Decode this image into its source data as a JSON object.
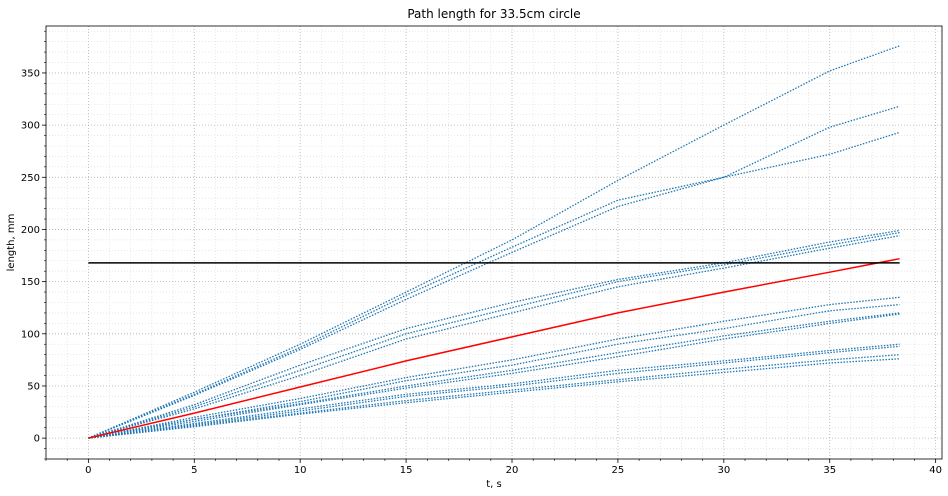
{
  "chart_data": {
    "type": "line",
    "title": "Path length for 33.5cm circle",
    "xlabel": "t, s",
    "ylabel": "length, mm",
    "xlim": [
      -2,
      40.3
    ],
    "ylim": [
      -20,
      395
    ],
    "xticks": [
      0,
      5,
      10,
      15,
      20,
      25,
      30,
      35,
      40
    ],
    "yticks": [
      0,
      50,
      100,
      150,
      200,
      250,
      300,
      350
    ],
    "grid": true,
    "minor_grid": true,
    "colors": {
      "paths": "#1f77b4",
      "mean": "#ff0000",
      "threshold": "#000000",
      "grid": "#b0b0b0"
    },
    "series": [
      {
        "style": "dotted",
        "x": [
          0,
          5,
          10,
          15,
          20,
          25,
          30,
          35,
          38.3
        ],
        "y": [
          0,
          44,
          90,
          140,
          190,
          247,
          300,
          352,
          376
        ]
      },
      {
        "style": "dotted",
        "x": [
          0,
          5,
          10,
          15,
          20,
          25,
          30,
          35,
          38.3
        ],
        "y": [
          0,
          42,
          87,
          137,
          183,
          228,
          250,
          298,
          318
        ]
      },
      {
        "style": "dotted",
        "x": [
          0,
          5,
          10,
          15,
          20,
          25,
          30,
          35,
          38.3
        ],
        "y": [
          0,
          41,
          85,
          133,
          178,
          222,
          250,
          272,
          293
        ]
      },
      {
        "style": "dotted",
        "x": [
          0,
          5,
          10,
          15,
          20,
          25,
          30,
          35,
          38.3
        ],
        "y": [
          0,
          32,
          70,
          105,
          130,
          152,
          168,
          188,
          199
        ]
      },
      {
        "style": "dotted",
        "x": [
          0,
          5,
          10,
          15,
          20,
          25,
          30,
          35,
          38.3
        ],
        "y": [
          0,
          30,
          65,
          100,
          125,
          150,
          166,
          185,
          197
        ]
      },
      {
        "style": "dotted",
        "x": [
          0,
          5,
          10,
          15,
          20,
          25,
          30,
          35,
          38.3
        ],
        "y": [
          0,
          28,
          60,
          95,
          120,
          145,
          163,
          182,
          194
        ]
      },
      {
        "style": "dotted",
        "x": [
          0,
          5,
          10,
          15,
          20,
          25,
          30,
          35,
          38.3
        ],
        "y": [
          0,
          20,
          38,
          58,
          75,
          95,
          112,
          128,
          135
        ]
      },
      {
        "style": "dotted",
        "x": [
          0,
          5,
          10,
          15,
          20,
          25,
          30,
          35,
          38.3
        ],
        "y": [
          0,
          18,
          35,
          55,
          70,
          90,
          105,
          122,
          128
        ]
      },
      {
        "style": "dotted",
        "x": [
          0,
          5,
          10,
          15,
          20,
          25,
          30,
          35,
          38.3
        ],
        "y": [
          0,
          18,
          33,
          50,
          65,
          82,
          98,
          112,
          120
        ]
      },
      {
        "style": "dotted",
        "x": [
          0,
          5,
          10,
          15,
          20,
          25,
          30,
          35,
          38.3
        ],
        "y": [
          0,
          16,
          32,
          48,
          62,
          78,
          95,
          110,
          119
        ]
      },
      {
        "style": "dotted",
        "x": [
          0,
          5,
          10,
          15,
          20,
          25,
          30,
          35,
          38.3
        ],
        "y": [
          0,
          14,
          28,
          42,
          52,
          65,
          74,
          84,
          90
        ]
      },
      {
        "style": "dotted",
        "x": [
          0,
          5,
          10,
          15,
          20,
          25,
          30,
          35,
          38.3
        ],
        "y": [
          0,
          13,
          26,
          40,
          50,
          62,
          72,
          82,
          88
        ]
      },
      {
        "style": "dotted",
        "x": [
          0,
          5,
          10,
          15,
          20,
          25,
          30,
          35,
          38.3
        ],
        "y": [
          0,
          12,
          24,
          36,
          46,
          56,
          66,
          75,
          80
        ]
      },
      {
        "style": "dotted",
        "x": [
          0,
          5,
          10,
          15,
          20,
          25,
          30,
          35,
          38.3
        ],
        "y": [
          0,
          11,
          23,
          34,
          44,
          54,
          63,
          72,
          76
        ]
      },
      {
        "style": "solid-red",
        "x": [
          0,
          5,
          10,
          15,
          20,
          25,
          30,
          35,
          38.3
        ],
        "y": [
          0,
          24,
          49,
          74,
          97,
          120,
          140,
          159,
          172
        ]
      }
    ],
    "hlines": [
      {
        "y": 168,
        "x": [
          0,
          38.3
        ],
        "color": "#000000"
      }
    ]
  }
}
